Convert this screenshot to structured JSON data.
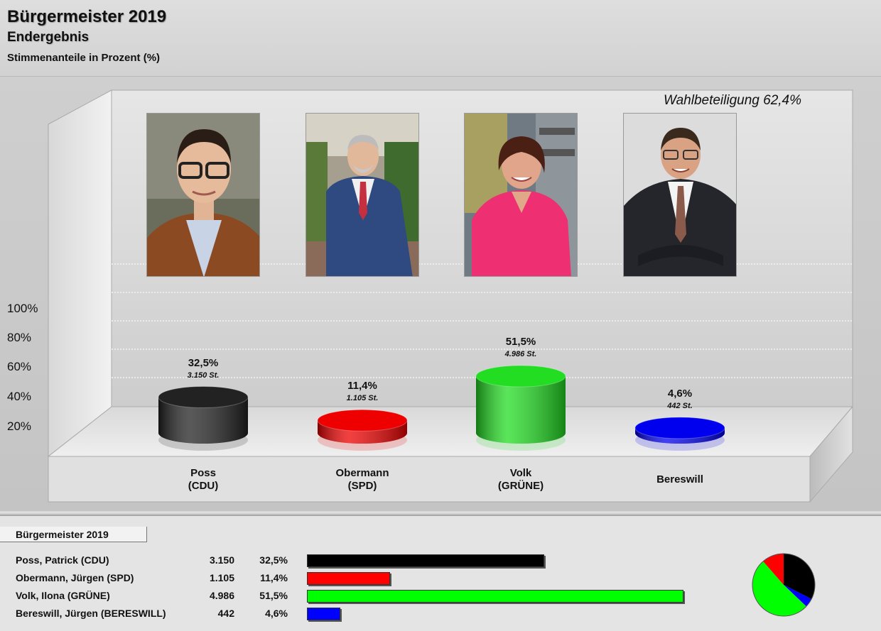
{
  "header": {
    "title": "Bürgermeister 2019",
    "subtitle": "Endergebnis",
    "subtitle2": "Stimmenanteile in Prozent (%)"
  },
  "turnout": "Wahlbeteiligung 62,4%",
  "chart_data": {
    "type": "bar",
    "title": "Bürgermeister 2019",
    "subtitle": "Endergebnis",
    "ylabel": "Stimmenanteile in Prozent (%)",
    "y_ticks": [
      "20%",
      "40%",
      "60%",
      "80%",
      "100%"
    ],
    "ylim": [
      0,
      100
    ],
    "categories": [
      "Poss (CDU)",
      "Obermann (SPD)",
      "Volk (GRÜNE)",
      "Bereswill"
    ],
    "values": [
      32.5,
      11.4,
      51.5,
      4.6
    ],
    "votes": [
      3150,
      1105,
      4986,
      442
    ],
    "value_labels": [
      "32,5%",
      "11,4%",
      "51,5%",
      "4,6%"
    ],
    "vote_labels": [
      "3.150 St.",
      "1.105 St.",
      "4.986 St.",
      "442 St."
    ],
    "colors": [
      "#222222",
      "#ee0000",
      "#22dd22",
      "#0000ee"
    ]
  },
  "candidates": [
    {
      "line1": "Poss",
      "line2": "(CDU)"
    },
    {
      "line1": "Obermann",
      "line2": "(SPD)"
    },
    {
      "line1": "Volk",
      "line2": "(GRÜNE)"
    },
    {
      "line1": "Bereswill",
      "line2": ""
    }
  ],
  "table": {
    "tab_label": "Bürgermeister 2019",
    "rows": [
      {
        "name": "Poss, Patrick (CDU)",
        "votes": "3.150",
        "pct": "32,5%",
        "value": 32.5,
        "color": "#000000"
      },
      {
        "name": "Obermann, Jürgen (SPD)",
        "votes": "1.105",
        "pct": "11,4%",
        "value": 11.4,
        "color": "#ff0000"
      },
      {
        "name": "Volk, Ilona (GRÜNE)",
        "votes": "4.986",
        "pct": "51,5%",
        "value": 51.5,
        "color": "#00ff00"
      },
      {
        "name": "Bereswill, Jürgen (BERESWILL)",
        "votes": "442",
        "pct": "4,6%",
        "value": 4.6,
        "color": "#0000ff"
      }
    ]
  }
}
